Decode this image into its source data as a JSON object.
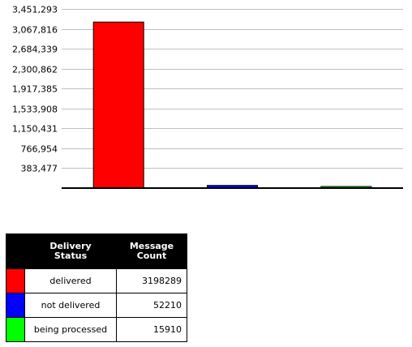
{
  "chart_data": {
    "type": "bar",
    "title": "",
    "xlabel": "",
    "ylabel": "",
    "ylim": [
      0,
      3451293
    ],
    "y_ticks": [
      "3,451,293",
      "3,067,816",
      "2,684,339",
      "2,300,862",
      "1,917,385",
      "1,533,908",
      "1,150,431",
      "766,954",
      "383,477"
    ],
    "categories": [
      "delivered",
      "not delivered",
      "being processed"
    ],
    "values": [
      3198289,
      52210,
      15910
    ],
    "colors": [
      "#ff0000",
      "#0000ff",
      "#00ff00"
    ],
    "grid": true,
    "legend": "table-below"
  },
  "legend_table": {
    "headers": {
      "status_line1": "Delivery",
      "status_line2": "Status",
      "count_line1": "Message",
      "count_line2": "Count"
    },
    "rows": [
      {
        "status": "delivered",
        "count": "3198289",
        "color": "#ff0000"
      },
      {
        "status": "not delivered",
        "count": "52210",
        "color": "#0000ff"
      },
      {
        "status": "being processed",
        "count": "15910",
        "color": "#00ff00"
      }
    ]
  }
}
